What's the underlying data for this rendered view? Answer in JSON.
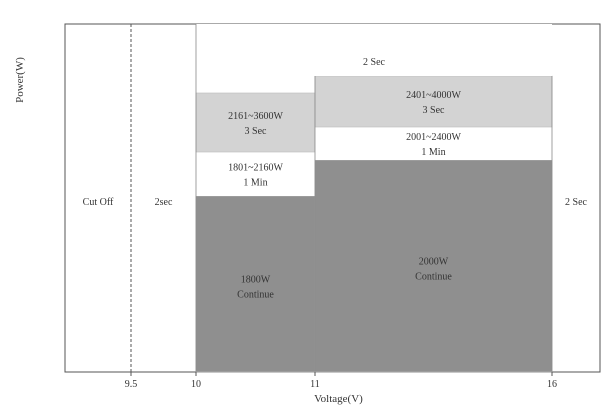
{
  "chart_data": {
    "type": "area",
    "xlabel": "Voltage(V)",
    "ylabel": "Power(W)",
    "x_ticks": [
      "9.5",
      "10",
      "11",
      "16"
    ],
    "colors": {
      "dark": "#8f8f8f",
      "light": "#d3d3d3",
      "white": "#ffffff",
      "frame": "#555555",
      "gridline": "#888888"
    },
    "regions": [
      {
        "name": "cutoff",
        "x_range": [
          "min",
          9.5
        ],
        "lines": [
          "Cut Off"
        ],
        "shade": "white"
      },
      {
        "name": "low-2sec",
        "x_range": [
          9.5,
          10
        ],
        "lines": [
          "2sec"
        ],
        "shade": "white"
      },
      {
        "name": "r10-1800",
        "x_range": [
          10,
          11
        ],
        "y_range": [
          0,
          1800
        ],
        "lines": [
          "1800W",
          "Continue"
        ],
        "shade": "dark"
      },
      {
        "name": "r10-2160",
        "x_range": [
          10,
          11
        ],
        "y_range": [
          1801,
          2160
        ],
        "lines": [
          "1801~2160W",
          "1 Min"
        ],
        "shade": "white"
      },
      {
        "name": "r10-3600",
        "x_range": [
          10,
          11
        ],
        "y_range": [
          2161,
          3600
        ],
        "lines": [
          "2161~3600W",
          "3 Sec"
        ],
        "shade": "light"
      },
      {
        "name": "r11-2000",
        "x_range": [
          11,
          16
        ],
        "y_range": [
          0,
          2000
        ],
        "lines": [
          "2000W",
          "Continue"
        ],
        "shade": "dark"
      },
      {
        "name": "r11-2400",
        "x_range": [
          11,
          16
        ],
        "y_range": [
          2001,
          2400
        ],
        "lines": [
          "2001~2400W",
          "1 Min"
        ],
        "shade": "white"
      },
      {
        "name": "r11-4000",
        "x_range": [
          11,
          16
        ],
        "y_range": [
          2401,
          4000
        ],
        "lines": [
          "2401~4000W",
          "3 Sec"
        ],
        "shade": "light"
      },
      {
        "name": "top-2sec",
        "x_range": [
          10,
          16
        ],
        "y_range": [
          "above",
          "max"
        ],
        "lines": [
          "2 Sec"
        ],
        "shade": "white"
      },
      {
        "name": "high-2sec",
        "x_range": [
          16,
          "max"
        ],
        "lines": [
          "2 Sec"
        ],
        "shade": "white"
      }
    ]
  }
}
